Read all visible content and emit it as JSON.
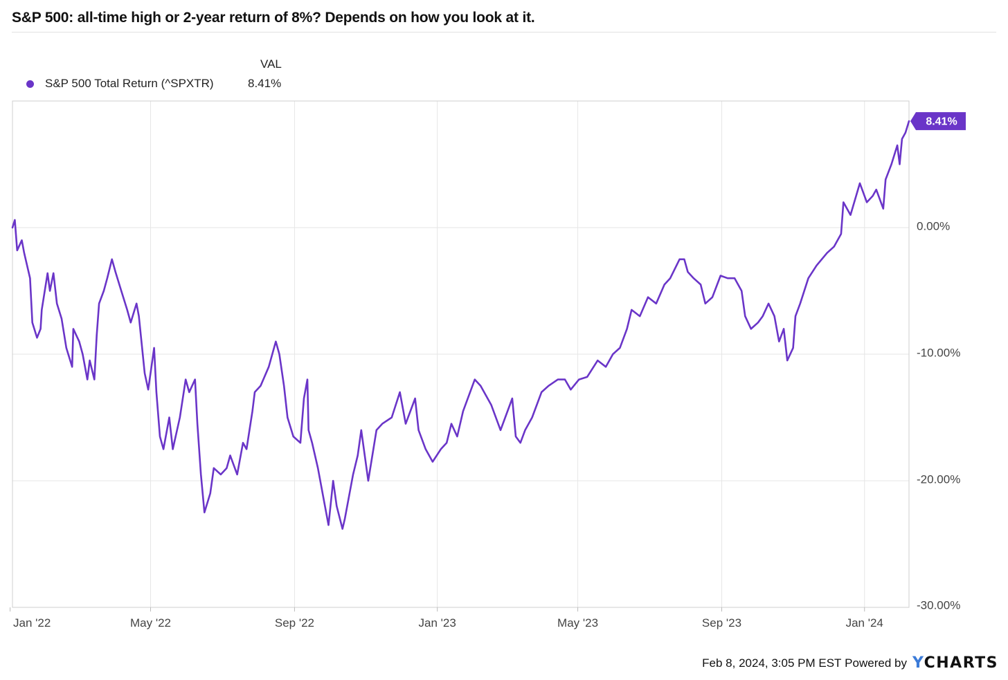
{
  "header": {
    "title": "S&P 500: all-time high or 2-year return of 8%? Depends on how you look at it."
  },
  "legend": {
    "column_header": "VAL",
    "series_label": "S&P 500 Total Return (^SPXTR)",
    "series_value": "8.41%"
  },
  "end_badge": "8.41%",
  "footer": {
    "timestamp": "Feb 8, 2024, 3:05 PM EST",
    "powered_by": "Powered by",
    "brand_prefix": "Y",
    "brand_rest": "CHARTS"
  },
  "colors": {
    "line": "#6a35c8",
    "grid": "#e6e6e6",
    "axis_text": "#444444"
  },
  "chart_data": {
    "type": "line",
    "title": "S&P 500: all-time high or 2-year return of 8%? Depends on how you look at it.",
    "xlabel": "",
    "ylabel": "",
    "y_unit": "%",
    "ylim": [
      -30,
      10
    ],
    "x_range": [
      "2022-01-03",
      "2024-02-08"
    ],
    "yticks": [
      0,
      -10,
      -20,
      -30
    ],
    "ytick_labels": [
      "0.00%",
      "-10.00%",
      "-20.00%",
      "-30.00%"
    ],
    "xticks": [
      "2022-01-01",
      "2022-05-01",
      "2022-09-01",
      "2023-01-01",
      "2023-05-01",
      "2023-09-01",
      "2024-01-01"
    ],
    "xtick_labels": [
      "Jan '22",
      "May '22",
      "Sep '22",
      "Jan '23",
      "May '23",
      "Sep '23",
      "Jan '24"
    ],
    "grid": true,
    "legend_position": "top-left",
    "series": [
      {
        "name": "S&P 500 Total Return (^SPXTR)",
        "color": "#6a35c8",
        "points": [
          [
            "2022-01-03",
            0.0
          ],
          [
            "2022-01-05",
            0.6
          ],
          [
            "2022-01-07",
            -1.8
          ],
          [
            "2022-01-11",
            -1.0
          ],
          [
            "2022-01-13",
            -2.0
          ],
          [
            "2022-01-18",
            -4.0
          ],
          [
            "2022-01-20",
            -7.5
          ],
          [
            "2022-01-24",
            -8.7
          ],
          [
            "2022-01-27",
            -8.0
          ],
          [
            "2022-01-28",
            -6.5
          ],
          [
            "2022-02-02",
            -3.6
          ],
          [
            "2022-02-04",
            -5.0
          ],
          [
            "2022-02-07",
            -3.6
          ],
          [
            "2022-02-10",
            -6.0
          ],
          [
            "2022-02-14",
            -7.2
          ],
          [
            "2022-02-18",
            -9.5
          ],
          [
            "2022-02-23",
            -11.0
          ],
          [
            "2022-02-24",
            -8.0
          ],
          [
            "2022-03-01",
            -9.0
          ],
          [
            "2022-03-04",
            -10.0
          ],
          [
            "2022-03-08",
            -12.0
          ],
          [
            "2022-03-10",
            -10.5
          ],
          [
            "2022-03-14",
            -12.0
          ],
          [
            "2022-03-16",
            -8.5
          ],
          [
            "2022-03-18",
            -6.0
          ],
          [
            "2022-03-22",
            -5.0
          ],
          [
            "2022-03-25",
            -4.0
          ],
          [
            "2022-03-29",
            -2.5
          ],
          [
            "2022-04-01",
            -3.5
          ],
          [
            "2022-04-06",
            -5.0
          ],
          [
            "2022-04-11",
            -6.5
          ],
          [
            "2022-04-14",
            -7.5
          ],
          [
            "2022-04-19",
            -6.0
          ],
          [
            "2022-04-21",
            -7.0
          ],
          [
            "2022-04-26",
            -11.5
          ],
          [
            "2022-04-29",
            -12.8
          ],
          [
            "2022-05-04",
            -9.5
          ],
          [
            "2022-05-06",
            -13.0
          ],
          [
            "2022-05-09",
            -16.5
          ],
          [
            "2022-05-12",
            -17.5
          ],
          [
            "2022-05-17",
            -15.0
          ],
          [
            "2022-05-20",
            -17.5
          ],
          [
            "2022-05-26",
            -15.0
          ],
          [
            "2022-05-31",
            -12.0
          ],
          [
            "2022-06-03",
            -13.0
          ],
          [
            "2022-06-08",
            -12.0
          ],
          [
            "2022-06-10",
            -15.5
          ],
          [
            "2022-06-13",
            -19.5
          ],
          [
            "2022-06-16",
            -22.5
          ],
          [
            "2022-06-21",
            -21.0
          ],
          [
            "2022-06-24",
            -19.0
          ],
          [
            "2022-06-30",
            -19.5
          ],
          [
            "2022-07-05",
            -19.0
          ],
          [
            "2022-07-08",
            -18.0
          ],
          [
            "2022-07-14",
            -19.5
          ],
          [
            "2022-07-19",
            -17.0
          ],
          [
            "2022-07-22",
            -17.5
          ],
          [
            "2022-07-27",
            -14.5
          ],
          [
            "2022-07-29",
            -13.0
          ],
          [
            "2022-08-03",
            -12.5
          ],
          [
            "2022-08-10",
            -11.0
          ],
          [
            "2022-08-16",
            -9.0
          ],
          [
            "2022-08-19",
            -10.0
          ],
          [
            "2022-08-23",
            -12.5
          ],
          [
            "2022-08-26",
            -15.0
          ],
          [
            "2022-08-31",
            -16.5
          ],
          [
            "2022-09-06",
            -17.0
          ],
          [
            "2022-09-09",
            -13.5
          ],
          [
            "2022-09-12",
            -12.0
          ],
          [
            "2022-09-13",
            -16.0
          ],
          [
            "2022-09-16",
            -17.0
          ],
          [
            "2022-09-21",
            -19.0
          ],
          [
            "2022-09-26",
            -21.5
          ],
          [
            "2022-09-30",
            -23.5
          ],
          [
            "2022-10-04",
            -20.0
          ],
          [
            "2022-10-07",
            -22.0
          ],
          [
            "2022-10-12",
            -23.8
          ],
          [
            "2022-10-14",
            -23.0
          ],
          [
            "2022-10-18",
            -21.0
          ],
          [
            "2022-10-21",
            -19.5
          ],
          [
            "2022-10-25",
            -18.0
          ],
          [
            "2022-10-28",
            -16.0
          ],
          [
            "2022-11-03",
            -20.0
          ],
          [
            "2022-11-10",
            -16.0
          ],
          [
            "2022-11-15",
            -15.5
          ],
          [
            "2022-11-23",
            -15.0
          ],
          [
            "2022-11-30",
            -13.0
          ],
          [
            "2022-12-05",
            -15.5
          ],
          [
            "2022-12-13",
            -13.5
          ],
          [
            "2022-12-16",
            -16.0
          ],
          [
            "2022-12-22",
            -17.5
          ],
          [
            "2022-12-28",
            -18.5
          ],
          [
            "2023-01-04",
            -17.5
          ],
          [
            "2023-01-09",
            -17.0
          ],
          [
            "2023-01-13",
            -15.5
          ],
          [
            "2023-01-18",
            -16.5
          ],
          [
            "2023-01-23",
            -14.5
          ],
          [
            "2023-02-02",
            -12.0
          ],
          [
            "2023-02-07",
            -12.5
          ],
          [
            "2023-02-16",
            -14.0
          ],
          [
            "2023-02-24",
            -16.0
          ],
          [
            "2023-03-06",
            -13.5
          ],
          [
            "2023-03-09",
            -16.5
          ],
          [
            "2023-03-13",
            -17.0
          ],
          [
            "2023-03-17",
            -16.0
          ],
          [
            "2023-03-23",
            -15.0
          ],
          [
            "2023-03-31",
            -13.0
          ],
          [
            "2023-04-06",
            -12.5
          ],
          [
            "2023-04-14",
            -12.0
          ],
          [
            "2023-04-20",
            -12.0
          ],
          [
            "2023-04-25",
            -12.8
          ],
          [
            "2023-05-02",
            -12.0
          ],
          [
            "2023-05-09",
            -11.8
          ],
          [
            "2023-05-18",
            -10.5
          ],
          [
            "2023-05-25",
            -11.0
          ],
          [
            "2023-05-31",
            -10.0
          ],
          [
            "2023-06-06",
            -9.5
          ],
          [
            "2023-06-12",
            -8.0
          ],
          [
            "2023-06-16",
            -6.5
          ],
          [
            "2023-06-23",
            -7.0
          ],
          [
            "2023-06-30",
            -5.5
          ],
          [
            "2023-07-07",
            -6.0
          ],
          [
            "2023-07-14",
            -4.5
          ],
          [
            "2023-07-19",
            -4.0
          ],
          [
            "2023-07-27",
            -2.5
          ],
          [
            "2023-07-31",
            -2.5
          ],
          [
            "2023-08-03",
            -3.5
          ],
          [
            "2023-08-08",
            -4.0
          ],
          [
            "2023-08-14",
            -4.5
          ],
          [
            "2023-08-18",
            -6.0
          ],
          [
            "2023-08-24",
            -5.5
          ],
          [
            "2023-08-31",
            -3.8
          ],
          [
            "2023-09-06",
            -4.0
          ],
          [
            "2023-09-12",
            -4.0
          ],
          [
            "2023-09-18",
            -5.0
          ],
          [
            "2023-09-21",
            -7.0
          ],
          [
            "2023-09-26",
            -8.0
          ],
          [
            "2023-10-02",
            -7.5
          ],
          [
            "2023-10-06",
            -7.0
          ],
          [
            "2023-10-11",
            -6.0
          ],
          [
            "2023-10-16",
            -7.0
          ],
          [
            "2023-10-20",
            -9.0
          ],
          [
            "2023-10-24",
            -8.0
          ],
          [
            "2023-10-27",
            -10.5
          ],
          [
            "2023-11-01",
            -9.5
          ],
          [
            "2023-11-03",
            -7.0
          ],
          [
            "2023-11-07",
            -6.0
          ],
          [
            "2023-11-14",
            -4.0
          ],
          [
            "2023-11-21",
            -3.0
          ],
          [
            "2023-11-30",
            -2.0
          ],
          [
            "2023-12-06",
            -1.5
          ],
          [
            "2023-12-12",
            -0.5
          ],
          [
            "2023-12-14",
            2.0
          ],
          [
            "2023-12-20",
            1.0
          ],
          [
            "2023-12-28",
            3.5
          ],
          [
            "2024-01-03",
            2.0
          ],
          [
            "2024-01-08",
            2.5
          ],
          [
            "2024-01-11",
            3.0
          ],
          [
            "2024-01-17",
            1.5
          ],
          [
            "2024-01-19",
            3.8
          ],
          [
            "2024-01-24",
            5.0
          ],
          [
            "2024-01-29",
            6.5
          ],
          [
            "2024-01-31",
            5.0
          ],
          [
            "2024-02-02",
            7.0
          ],
          [
            "2024-02-05",
            7.5
          ],
          [
            "2024-02-08",
            8.41
          ]
        ]
      }
    ]
  }
}
